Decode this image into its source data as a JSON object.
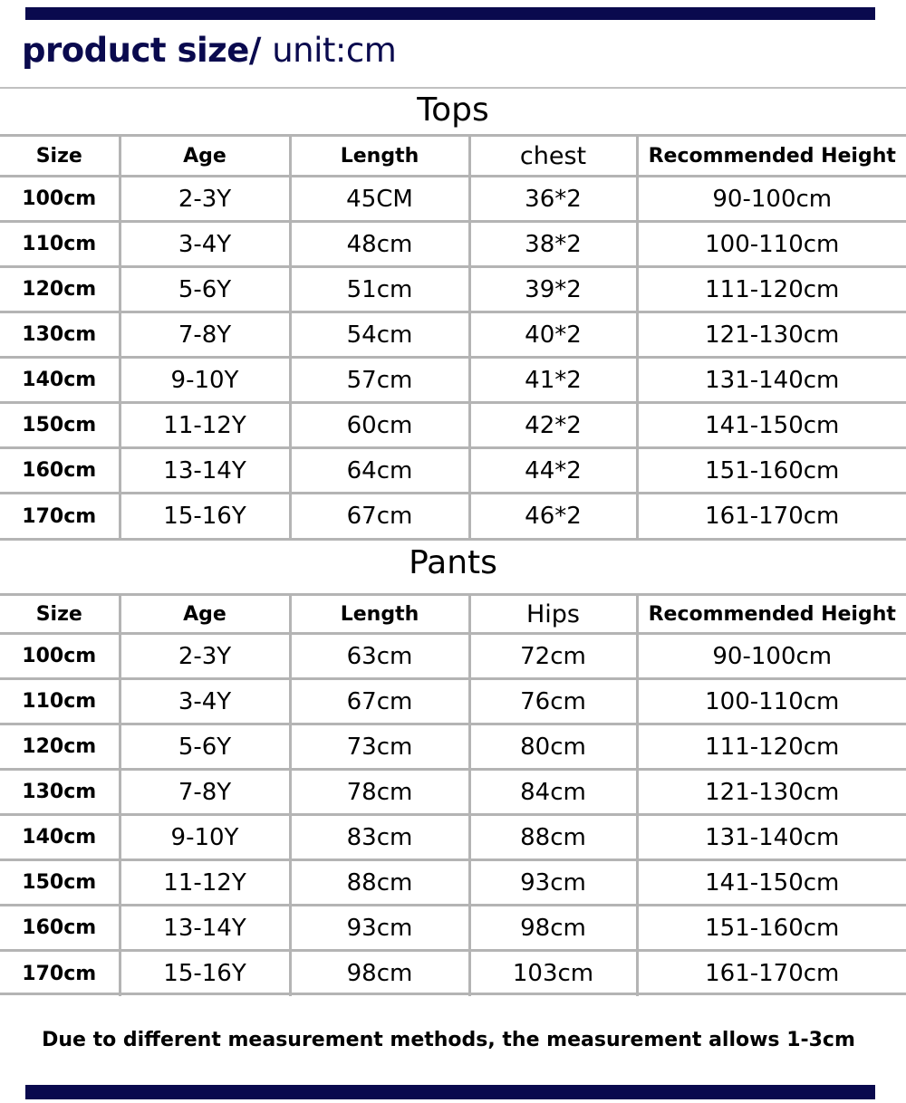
{
  "header": {
    "title": "product size/",
    "unit": "unit:cm"
  },
  "colors": {
    "accent": "#0a0a4e",
    "grid": "#b4b4b4"
  },
  "tops": {
    "title": "Tops",
    "columns": [
      "Size",
      "Age",
      "Length",
      "chest",
      "Recommended Height"
    ],
    "rows": [
      [
        "100cm",
        "2-3Y",
        "45CM",
        "36*2",
        "90-100cm"
      ],
      [
        "110cm",
        "3-4Y",
        "48cm",
        "38*2",
        "100-110cm"
      ],
      [
        "120cm",
        "5-6Y",
        "51cm",
        "39*2",
        "111-120cm"
      ],
      [
        "130cm",
        "7-8Y",
        "54cm",
        "40*2",
        "121-130cm"
      ],
      [
        "140cm",
        "9-10Y",
        "57cm",
        "41*2",
        "131-140cm"
      ],
      [
        "150cm",
        "11-12Y",
        "60cm",
        "42*2",
        "141-150cm"
      ],
      [
        "160cm",
        "13-14Y",
        "64cm",
        "44*2",
        "151-160cm"
      ],
      [
        "170cm",
        "15-16Y",
        "67cm",
        "46*2",
        "161-170cm"
      ]
    ]
  },
  "pants": {
    "title": "Pants",
    "columns": [
      "Size",
      "Age",
      "Length",
      "Hips",
      "Recommended Height"
    ],
    "rows": [
      [
        "100cm",
        "2-3Y",
        "63cm",
        "72cm",
        "90-100cm"
      ],
      [
        "110cm",
        "3-4Y",
        "67cm",
        "76cm",
        "100-110cm"
      ],
      [
        "120cm",
        "5-6Y",
        "73cm",
        "80cm",
        "111-120cm"
      ],
      [
        "130cm",
        "7-8Y",
        "78cm",
        "84cm",
        "121-130cm"
      ],
      [
        "140cm",
        "9-10Y",
        "83cm",
        "88cm",
        "131-140cm"
      ],
      [
        "150cm",
        "11-12Y",
        "88cm",
        "93cm",
        "141-150cm"
      ],
      [
        "160cm",
        "13-14Y",
        "93cm",
        "98cm",
        "151-160cm"
      ],
      [
        "170cm",
        "15-16Y",
        "98cm",
        "103cm",
        "161-170cm"
      ]
    ]
  },
  "footer": {
    "note": "Due to different measurement methods, the measurement allows 1-3cm"
  }
}
